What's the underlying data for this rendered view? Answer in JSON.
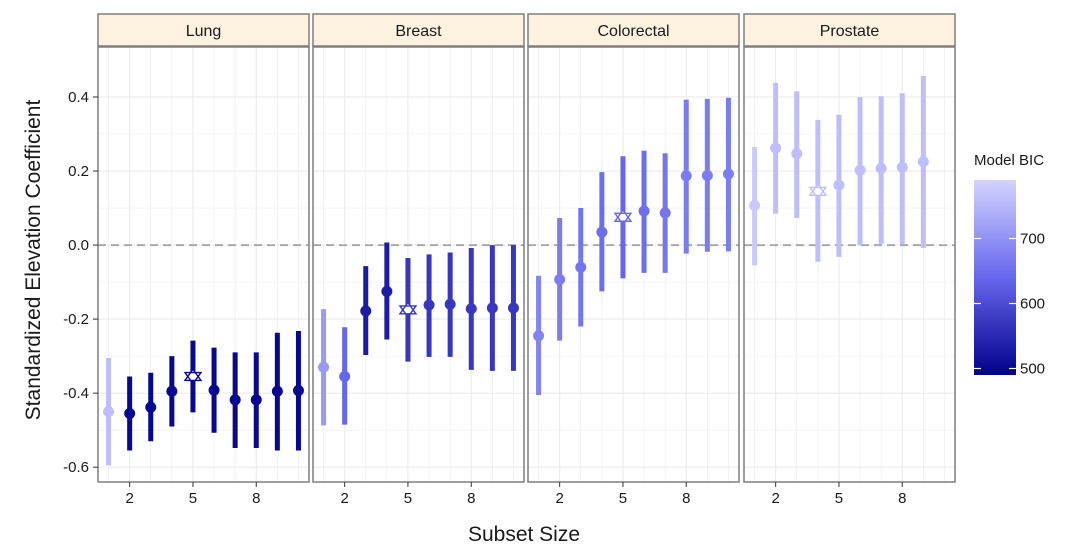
{
  "chart_data": {
    "type": "scatter",
    "subtype": "faceted point-range",
    "facets": [
      {
        "name": "Lung",
        "points": [
          {
            "x": 1,
            "y": -0.45,
            "lo": -0.595,
            "hi": -0.305,
            "bic": 760,
            "selected": false
          },
          {
            "x": 2,
            "y": -0.455,
            "lo": -0.555,
            "hi": -0.355,
            "bic": 500,
            "selected": false
          },
          {
            "x": 3,
            "y": -0.438,
            "lo": -0.53,
            "hi": -0.345,
            "bic": 500,
            "selected": false
          },
          {
            "x": 4,
            "y": -0.395,
            "lo": -0.49,
            "hi": -0.3,
            "bic": 500,
            "selected": false
          },
          {
            "x": 5,
            "y": -0.355,
            "lo": -0.452,
            "hi": -0.258,
            "bic": 500,
            "selected": true
          },
          {
            "x": 6,
            "y": -0.392,
            "lo": -0.507,
            "hi": -0.277,
            "bic": 500,
            "selected": false
          },
          {
            "x": 7,
            "y": -0.418,
            "lo": -0.548,
            "hi": -0.29,
            "bic": 500,
            "selected": false
          },
          {
            "x": 8,
            "y": -0.418,
            "lo": -0.548,
            "hi": -0.29,
            "bic": 500,
            "selected": false
          },
          {
            "x": 9,
            "y": -0.395,
            "lo": -0.555,
            "hi": -0.237,
            "bic": 500,
            "selected": false
          },
          {
            "x": 10,
            "y": -0.393,
            "lo": -0.555,
            "hi": -0.232,
            "bic": 500,
            "selected": false
          }
        ]
      },
      {
        "name": "Breast",
        "points": [
          {
            "x": 1,
            "y": -0.33,
            "lo": -0.487,
            "hi": -0.173,
            "bic": 710,
            "selected": false
          },
          {
            "x": 2,
            "y": -0.355,
            "lo": -0.485,
            "hi": -0.222,
            "bic": 640,
            "selected": false
          },
          {
            "x": 3,
            "y": -0.178,
            "lo": -0.297,
            "hi": -0.057,
            "bic": 530,
            "selected": false
          },
          {
            "x": 4,
            "y": -0.125,
            "lo": -0.255,
            "hi": 0.007,
            "bic": 530,
            "selected": false
          },
          {
            "x": 5,
            "y": -0.175,
            "lo": -0.315,
            "hi": -0.035,
            "bic": 570,
            "selected": true
          },
          {
            "x": 6,
            "y": -0.162,
            "lo": -0.302,
            "hi": -0.025,
            "bic": 570,
            "selected": false
          },
          {
            "x": 7,
            "y": -0.16,
            "lo": -0.302,
            "hi": -0.02,
            "bic": 570,
            "selected": false
          },
          {
            "x": 8,
            "y": -0.172,
            "lo": -0.337,
            "hi": -0.008,
            "bic": 570,
            "selected": false
          },
          {
            "x": 9,
            "y": -0.17,
            "lo": -0.34,
            "hi": 0.0,
            "bic": 570,
            "selected": false
          },
          {
            "x": 10,
            "y": -0.17,
            "lo": -0.34,
            "hi": 0.0,
            "bic": 570,
            "selected": false
          }
        ]
      },
      {
        "name": "Colorectal",
        "points": [
          {
            "x": 1,
            "y": -0.245,
            "lo": -0.405,
            "hi": -0.083,
            "bic": 680,
            "selected": false
          },
          {
            "x": 2,
            "y": -0.093,
            "lo": -0.258,
            "hi": 0.073,
            "bic": 670,
            "selected": false
          },
          {
            "x": 3,
            "y": -0.06,
            "lo": -0.22,
            "hi": 0.1,
            "bic": 660,
            "selected": false
          },
          {
            "x": 4,
            "y": 0.035,
            "lo": -0.125,
            "hi": 0.197,
            "bic": 650,
            "selected": false
          },
          {
            "x": 5,
            "y": 0.075,
            "lo": -0.09,
            "hi": 0.24,
            "bic": 640,
            "selected": true
          },
          {
            "x": 6,
            "y": 0.092,
            "lo": -0.075,
            "hi": 0.255,
            "bic": 650,
            "selected": false
          },
          {
            "x": 7,
            "y": 0.087,
            "lo": -0.075,
            "hi": 0.248,
            "bic": 660,
            "selected": false
          },
          {
            "x": 8,
            "y": 0.187,
            "lo": -0.023,
            "hi": 0.393,
            "bic": 670,
            "selected": false
          },
          {
            "x": 9,
            "y": 0.188,
            "lo": -0.018,
            "hi": 0.395,
            "bic": 670,
            "selected": false
          },
          {
            "x": 10,
            "y": 0.192,
            "lo": -0.017,
            "hi": 0.398,
            "bic": 670,
            "selected": false
          }
        ]
      },
      {
        "name": "Prostate",
        "points": [
          {
            "x": 1,
            "y": 0.107,
            "lo": -0.055,
            "hi": 0.265,
            "bic": 775,
            "selected": false
          },
          {
            "x": 2,
            "y": 0.262,
            "lo": 0.085,
            "hi": 0.438,
            "bic": 760,
            "selected": false
          },
          {
            "x": 3,
            "y": 0.247,
            "lo": 0.073,
            "hi": 0.415,
            "bic": 760,
            "selected": false
          },
          {
            "x": 4,
            "y": 0.145,
            "lo": -0.045,
            "hi": 0.338,
            "bic": 760,
            "selected": true
          },
          {
            "x": 5,
            "y": 0.162,
            "lo": -0.032,
            "hi": 0.352,
            "bic": 760,
            "selected": false
          },
          {
            "x": 6,
            "y": 0.202,
            "lo": 0.0,
            "hi": 0.4,
            "bic": 760,
            "selected": false
          },
          {
            "x": 7,
            "y": 0.207,
            "lo": 0.003,
            "hi": 0.402,
            "bic": 760,
            "selected": false
          },
          {
            "x": 8,
            "y": 0.21,
            "lo": 0.003,
            "hi": 0.41,
            "bic": 760,
            "selected": false
          },
          {
            "x": 9,
            "y": 0.225,
            "lo": -0.008,
            "hi": 0.457,
            "bic": 760,
            "selected": false
          }
        ]
      }
    ],
    "xlabel": "Subset Size",
    "ylabel": "Standardized Elevation Coefficient",
    "x_ticks": [
      2,
      5,
      8
    ],
    "x_tick_labels": [
      "2",
      "5",
      "8"
    ],
    "xlim": [
      0.5,
      10.5
    ],
    "y_ticks": [
      0.4,
      0.2,
      0.0,
      -0.2,
      -0.4,
      -0.6
    ],
    "y_tick_labels": [
      "0.4",
      "0.2",
      "0.0",
      "-0.2",
      "-0.4",
      "-0.6"
    ],
    "ylim": [
      -0.64,
      0.535
    ],
    "reference_line_y": 0.0,
    "legend": {
      "title": "Model BIC",
      "placement": "right",
      "ticks": [
        700,
        600,
        500
      ],
      "tick_labels": [
        "700",
        "600",
        "500"
      ],
      "range": [
        490,
        790
      ],
      "low_color": "#00008b",
      "mid_color": "#6666ee",
      "high_color": "#d4d4ff"
    },
    "grid": true,
    "colors": {
      "strip_fill": "#fdf2df",
      "border": "#7f7f7f",
      "grid": "#ebebeb",
      "reference_line": "#aaaaaa"
    }
  }
}
